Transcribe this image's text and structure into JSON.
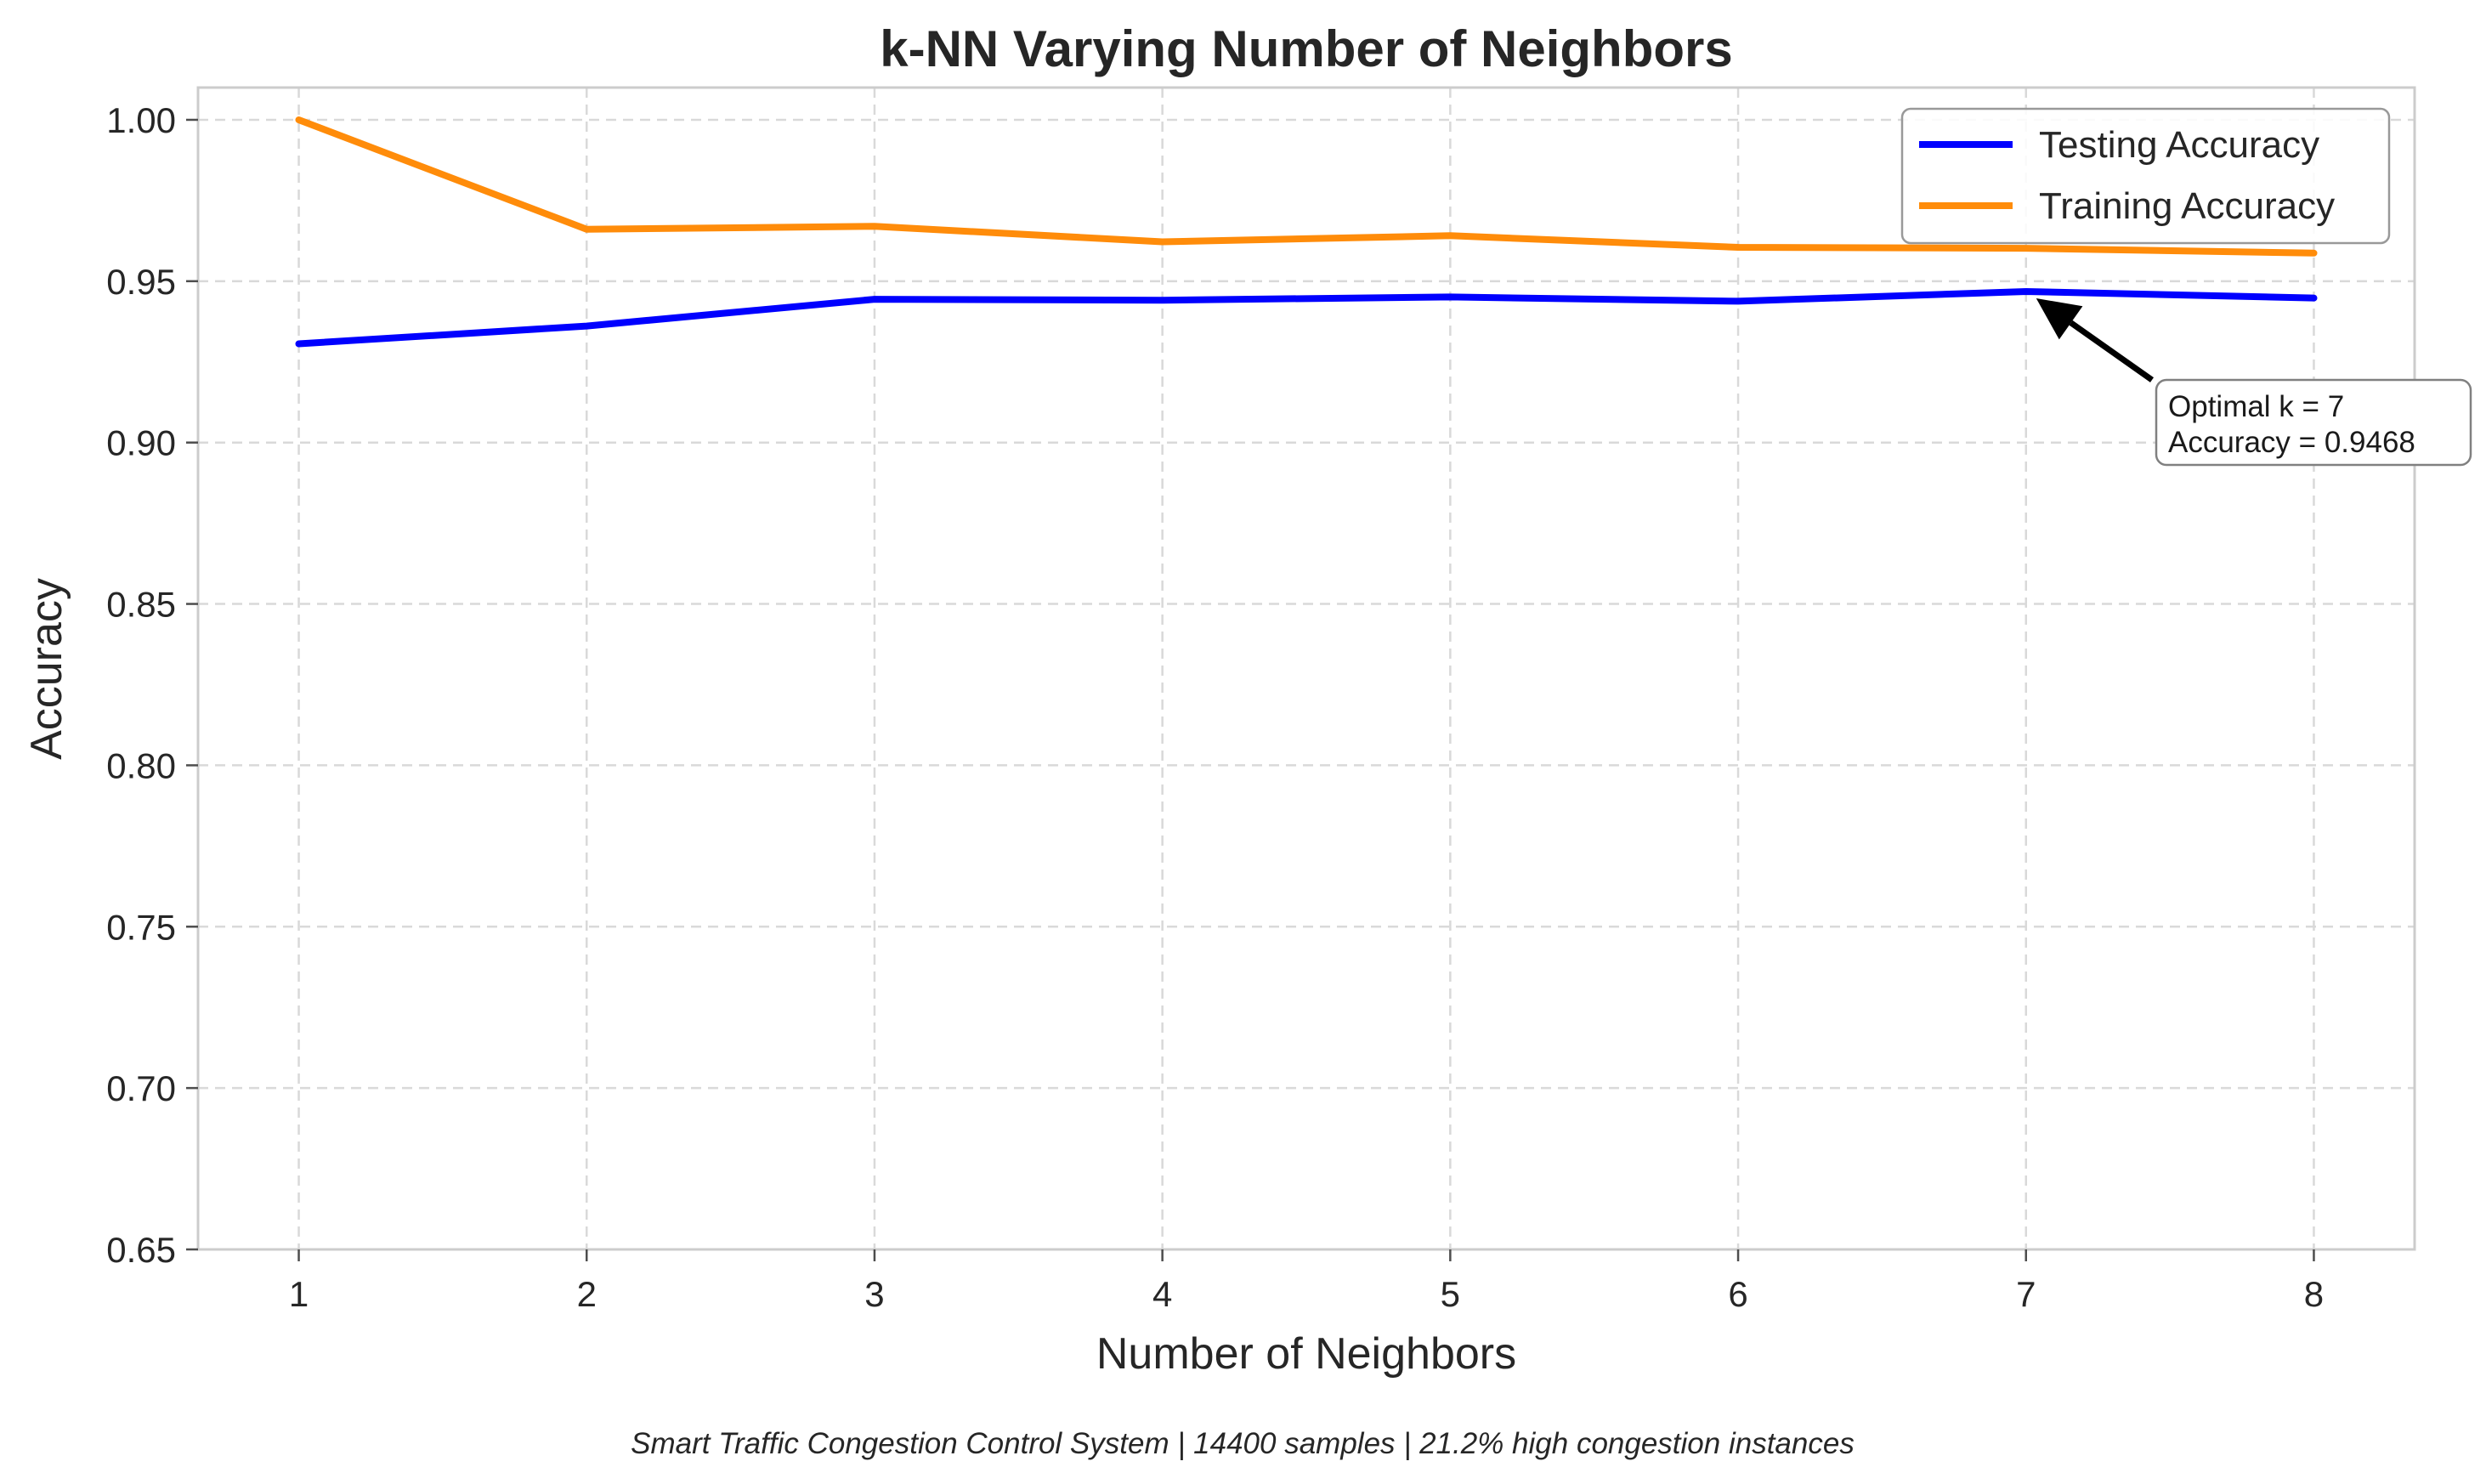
{
  "chart_data": {
    "type": "line",
    "title": "k-NN Varying Number of Neighbors",
    "xlabel": "Number of Neighbors",
    "ylabel": "Accuracy",
    "x": [
      1,
      2,
      3,
      4,
      5,
      6,
      7,
      8
    ],
    "xticks": [
      "1",
      "2",
      "3",
      "4",
      "5",
      "6",
      "7",
      "8"
    ],
    "xlim": [
      0.65,
      8.35
    ],
    "ylim": [
      0.65,
      1.01
    ],
    "yticks": [
      0.65,
      0.7,
      0.75,
      0.8,
      0.85,
      0.9,
      0.95,
      1.0
    ],
    "yticklabels": [
      "0.65",
      "0.70",
      "0.75",
      "0.80",
      "0.85",
      "0.90",
      "0.95",
      "1.00"
    ],
    "grid": true,
    "legend_position": "top-right",
    "series": [
      {
        "name": "Testing Accuracy",
        "color": "#0000ff",
        "values": [
          0.9306,
          0.9361,
          0.9444,
          0.9441,
          0.9451,
          0.9438,
          0.9468,
          0.9448
        ]
      },
      {
        "name": "Training Accuracy",
        "color": "#ff8c0a",
        "values": [
          1.0,
          0.9661,
          0.967,
          0.9622,
          0.9641,
          0.9605,
          0.9602,
          0.9587
        ]
      }
    ],
    "annotation": {
      "x": 7,
      "y": 0.9468,
      "lines": [
        "Optimal k = 7",
        "Accuracy = 0.9468"
      ]
    },
    "caption": "Smart Traffic Congestion Control System | 14400 samples | 21.2% high congestion instances"
  }
}
